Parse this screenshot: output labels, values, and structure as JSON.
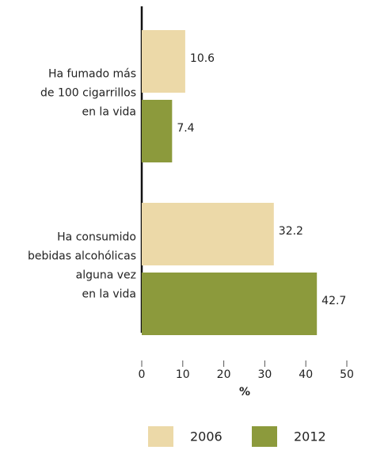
{
  "chart_data": {
    "type": "bar",
    "orientation": "horizontal",
    "categories": [
      [
        "Ha fumado más",
        "de 100 cigarrillos",
        "en la vida"
      ],
      [
        "Ha consumido",
        "bebidas alcohólicas",
        "alguna vez",
        "en la vida"
      ]
    ],
    "series": [
      {
        "name": "2006",
        "color": "#ecd9a8",
        "values": [
          10.6,
          32.2
        ]
      },
      {
        "name": "2012",
        "color": "#8c9a3c",
        "values": [
          7.4,
          42.7
        ]
      }
    ],
    "xlabel": "%",
    "xlim": [
      0,
      50
    ],
    "xticks": [
      0,
      10,
      20,
      30,
      40,
      50
    ],
    "legend": "bottom"
  }
}
